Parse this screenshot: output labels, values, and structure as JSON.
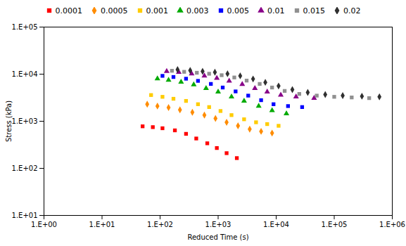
{
  "chart_data": {
    "type": "scatter",
    "title": "",
    "xlabel": "Reduced Time (s)",
    "ylabel": "Stress (kPa)",
    "log": true,
    "grid": false,
    "legend": "bottom",
    "xlim": [
      1,
      1000000
    ],
    "ylim": [
      10,
      100000
    ],
    "xticks": [
      {
        "value": 1,
        "label": "1.E+00"
      },
      {
        "value": 10,
        "label": "1.E+01"
      },
      {
        "value": 100,
        "label": "1.E+02"
      },
      {
        "value": 1000,
        "label": "1.E+03"
      },
      {
        "value": 10000,
        "label": "1.E+04"
      },
      {
        "value": 100000,
        "label": "1.E+05"
      },
      {
        "value": 1000000,
        "label": "1.E+06"
      }
    ],
    "yticks": [
      {
        "value": 10,
        "label": "1.E+01"
      },
      {
        "value": 100,
        "label": "1.E+02"
      },
      {
        "value": 1000,
        "label": "1.E+03"
      },
      {
        "value": 10000,
        "label": "1.E+04"
      },
      {
        "value": 100000,
        "label": "1.E+05"
      }
    ],
    "series": [
      {
        "name": "0.0001",
        "color": "#ff0000",
        "marker": "square",
        "x": [
          50,
          75,
          110,
          180,
          280,
          420,
          650,
          950,
          1400,
          2100
        ],
        "values": [
          780,
          750,
          710,
          640,
          540,
          430,
          340,
          270,
          210,
          165
        ]
      },
      {
        "name": "0.0005",
        "color": "#ff8c00",
        "marker": "diamond",
        "x": [
          60,
          90,
          140,
          220,
          360,
          580,
          900,
          1400,
          2200,
          3500,
          5500,
          8500
        ],
        "values": [
          2300,
          2100,
          1950,
          1750,
          1550,
          1350,
          1150,
          950,
          800,
          680,
          610,
          560
        ]
      },
      {
        "name": "0.001",
        "color": "#ffcc00",
        "marker": "square",
        "x": [
          70,
          110,
          170,
          280,
          450,
          700,
          1100,
          1700,
          2800,
          4500,
          7000,
          11000
        ],
        "values": [
          3600,
          3300,
          3000,
          2700,
          2300,
          2000,
          1650,
          1350,
          1100,
          950,
          870,
          800
        ]
      },
      {
        "name": "0.003",
        "color": "#00aa00",
        "marker": "triangle",
        "x": [
          90,
          140,
          230,
          380,
          620,
          1000,
          1700,
          2800,
          5000,
          8500,
          15000
        ],
        "values": [
          8000,
          7500,
          6800,
          6000,
          5000,
          4200,
          3300,
          2700,
          2100,
          1700,
          1450
        ]
      },
      {
        "name": "0.005",
        "color": "#0000ff",
        "marker": "square",
        "x": [
          110,
          170,
          280,
          450,
          750,
          1200,
          2000,
          3300,
          5500,
          9000,
          16000,
          28000
        ],
        "values": [
          9200,
          8700,
          8000,
          7200,
          6200,
          5200,
          4300,
          3500,
          2800,
          2300,
          2100,
          2000
        ]
      },
      {
        "name": "0.01",
        "color": "#880088",
        "marker": "triangle",
        "x": [
          130,
          210,
          350,
          580,
          950,
          1550,
          2600,
          4300,
          7000,
          12000,
          22000,
          45000
        ],
        "values": [
          11500,
          11000,
          10200,
          9200,
          8200,
          7200,
          6100,
          5000,
          4200,
          3600,
          3300,
          3100
        ]
      },
      {
        "name": "0.015",
        "color": "#909090",
        "marker": "square",
        "x": [
          160,
          260,
          430,
          700,
          1150,
          1900,
          3100,
          5200,
          8500,
          14000,
          25000,
          50000,
          100000,
          200000,
          400000
        ],
        "values": [
          11800,
          11200,
          10700,
          10200,
          9500,
          8500,
          7300,
          6200,
          5200,
          4400,
          3800,
          3500,
          3300,
          3200,
          3100
        ]
      },
      {
        "name": "0.02",
        "color": "#303030",
        "marker": "diamond",
        "x": [
          200,
          330,
          540,
          880,
          1450,
          2400,
          4000,
          6500,
          11000,
          19000,
          35000,
          70000,
          140000,
          300000,
          600000
        ],
        "values": [
          12500,
          12000,
          11500,
          11000,
          10200,
          9200,
          7900,
          6700,
          5600,
          4700,
          4100,
          3700,
          3500,
          3400,
          3300
        ]
      }
    ]
  }
}
